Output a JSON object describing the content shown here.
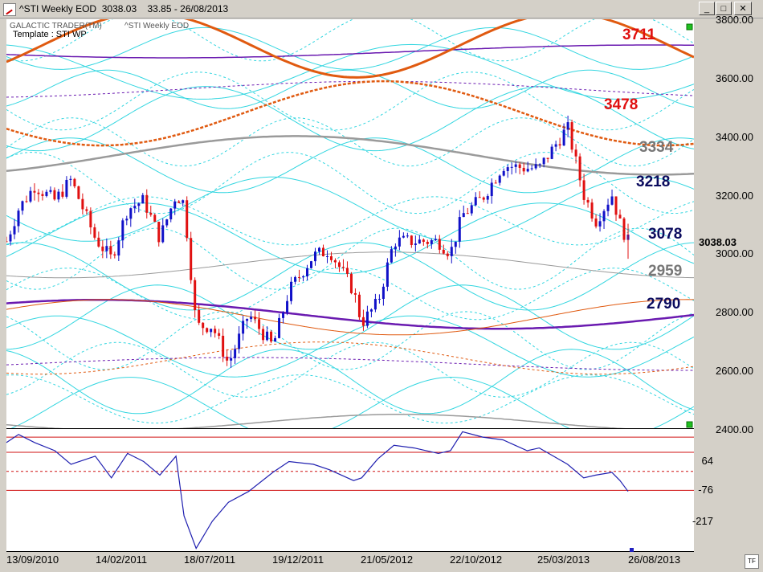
{
  "window": {
    "title": "^STI Weekly EOD  3038.03    33.85 - 26/08/2013",
    "minimize_label": "_",
    "maximize_label": "□",
    "close_label": "✕"
  },
  "chart_header": {
    "product": "GALACTIC TRADER(TM)",
    "series_name": "^STI Weekly EOD",
    "template": "Template : STI WP"
  },
  "current_price": "3038.03",
  "price_axis": {
    "ticks": [
      "3800.00",
      "3600.00",
      "3400.00",
      "3200.00",
      "3000.00",
      "2800.00",
      "2600.00",
      "2400.00"
    ]
  },
  "oscillator_axis": {
    "ticks": [
      "64",
      "-76",
      "-217"
    ]
  },
  "date_axis": {
    "ticks": [
      "13/09/2010",
      "14/02/2011",
      "18/07/2011",
      "19/12/2011",
      "21/05/2012",
      "22/10/2012",
      "25/03/2013",
      "26/08/2013"
    ]
  },
  "level_labels": [
    {
      "text": "3711",
      "color": "#e01010"
    },
    {
      "text": "3478",
      "color": "#e01010"
    },
    {
      "text": "3334",
      "color": "#777777"
    },
    {
      "text": "3218",
      "color": "#0b0b5e"
    },
    {
      "text": "3078",
      "color": "#0b0b5e"
    },
    {
      "text": "2959",
      "color": "#777777"
    },
    {
      "text": "2790",
      "color": "#0b0b5e"
    }
  ],
  "tf_label": "TF",
  "colors": {
    "up": "#1010c8",
    "down": "#e01010",
    "cyan": "#33d6e0",
    "purple": "#6a1ab0",
    "orange": "#e05a10",
    "gray": "#9a9a9a",
    "osc": "#2020b0",
    "ref": "#d01010"
  },
  "chart_data": {
    "type": "candlestick",
    "title": "^STI Weekly EOD",
    "ylim": [
      2400,
      3800
    ],
    "x_start": "13/09/2010",
    "x_end": "26/08/2013",
    "horizontal_levels": [
      3711,
      3478,
      3334,
      3218,
      3078,
      2959,
      2790
    ],
    "close_path": [
      [
        "2010-09-13",
        3040
      ],
      [
        "2010-10-04",
        3150
      ],
      [
        "2010-11-01",
        3230
      ],
      [
        "2010-12-06",
        3180
      ],
      [
        "2011-01-03",
        3250
      ],
      [
        "2011-02-14",
        3050
      ],
      [
        "2011-03-14",
        2980
      ],
      [
        "2011-04-11",
        3150
      ],
      [
        "2011-05-09",
        3180
      ],
      [
        "2011-06-06",
        3050
      ],
      [
        "2011-07-04",
        3200
      ],
      [
        "2011-07-18",
        3170
      ],
      [
        "2011-08-08",
        2750
      ],
      [
        "2011-09-05",
        2750
      ],
      [
        "2011-10-03",
        2620
      ],
      [
        "2011-11-07",
        2790
      ],
      [
        "2011-12-19",
        2680
      ],
      [
        "2012-01-16",
        2870
      ],
      [
        "2012-02-27",
        2990
      ],
      [
        "2012-03-26",
        3010
      ],
      [
        "2012-05-07",
        2870
      ],
      [
        "2012-05-21",
        2760
      ],
      [
        "2012-06-18",
        2830
      ],
      [
        "2012-07-16",
        3040
      ],
      [
        "2012-08-20",
        3040
      ],
      [
        "2012-10-01",
        3040
      ],
      [
        "2012-10-22",
        3000
      ],
      [
        "2012-11-12",
        3130
      ],
      [
        "2012-12-17",
        3190
      ],
      [
        "2013-01-21",
        3300
      ],
      [
        "2013-03-04",
        3290
      ],
      [
        "2013-03-25",
        3290
      ],
      [
        "2013-05-13",
        3430
      ],
      [
        "2013-06-10",
        3200
      ],
      [
        "2013-07-01",
        3110
      ],
      [
        "2013-07-29",
        3200
      ],
      [
        "2013-08-12",
        3100
      ],
      [
        "2013-08-26",
        3038.03
      ]
    ],
    "oscillator": {
      "ylim": [
        -300,
        150
      ],
      "reference_lines": [
        120,
        64,
        -76
      ],
      "values": [
        [
          "2010-09-13",
          100
        ],
        [
          "2010-10-04",
          130
        ],
        [
          "2010-11-01",
          100
        ],
        [
          "2010-12-06",
          70
        ],
        [
          "2011-01-03",
          20
        ],
        [
          "2011-02-14",
          50
        ],
        [
          "2011-03-14",
          -30
        ],
        [
          "2011-04-11",
          60
        ],
        [
          "2011-05-09",
          30
        ],
        [
          "2011-06-06",
          -20
        ],
        [
          "2011-07-04",
          50
        ],
        [
          "2011-07-18",
          -170
        ],
        [
          "2011-08-08",
          -290
        ],
        [
          "2011-09-05",
          -190
        ],
        [
          "2011-10-03",
          -120
        ],
        [
          "2011-11-07",
          -80
        ],
        [
          "2011-12-19",
          -10
        ],
        [
          "2012-01-16",
          30
        ],
        [
          "2012-02-27",
          20
        ],
        [
          "2012-03-26",
          0
        ],
        [
          "2012-05-07",
          -40
        ],
        [
          "2012-05-21",
          -30
        ],
        [
          "2012-06-18",
          40
        ],
        [
          "2012-07-16",
          90
        ],
        [
          "2012-08-20",
          80
        ],
        [
          "2012-10-01",
          60
        ],
        [
          "2012-10-22",
          70
        ],
        [
          "2012-11-12",
          140
        ],
        [
          "2012-12-17",
          120
        ],
        [
          "2013-01-21",
          110
        ],
        [
          "2013-03-04",
          70
        ],
        [
          "2013-03-25",
          80
        ],
        [
          "2013-05-13",
          20
        ],
        [
          "2013-06-10",
          -30
        ],
        [
          "2013-07-01",
          -20
        ],
        [
          "2013-07-29",
          -10
        ],
        [
          "2013-08-12",
          -40
        ],
        [
          "2013-08-26",
          -80
        ]
      ]
    }
  }
}
